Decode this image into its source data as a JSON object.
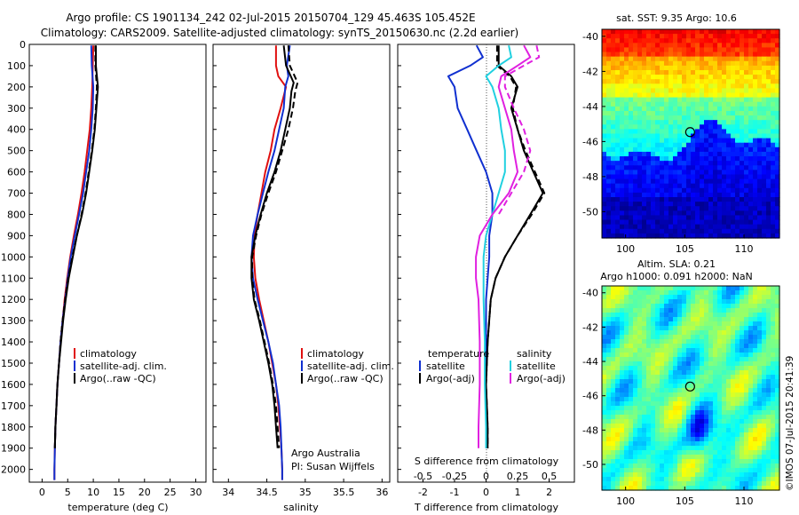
{
  "header": {
    "line1": "Argo profile: CS 1901134_242 02-Jul-2015 20150704_129 45.463S 105.452E",
    "line2": "Climatology: CARS2009. Satellite-adjusted climatology: synTS_20150630.nc (2.2d earlier)"
  },
  "colors": {
    "climatology": "#e01010",
    "satellite": "#1030d0",
    "argo": "#000000",
    "salinity_satellite": "#20d0e0",
    "salinity_argo": "#e020e0"
  },
  "chart_data": [
    {
      "type": "line",
      "panel": "temperature",
      "xlabel": "temperature (deg C)",
      "xticks": [
        "0",
        "5",
        "10",
        "15",
        "20",
        "25",
        "30"
      ],
      "xlim": [
        -2.5,
        32
      ],
      "yticks": [
        "0",
        "100",
        "200",
        "300",
        "400",
        "500",
        "600",
        "700",
        "800",
        "900",
        "1000",
        "1100",
        "1200",
        "1300",
        "1400",
        "1500",
        "1600",
        "1700",
        "1800",
        "1900",
        "2000"
      ],
      "ylim": [
        2060,
        0
      ],
      "legend": [
        "climatology",
        "satellite-adj. clim.",
        "Argo(..raw -QC)"
      ],
      "series": [
        {
          "name": "climatology",
          "color": "#e01010",
          "dash": false,
          "depth": [
            5,
            100,
            200,
            300,
            400,
            500,
            600,
            700,
            800,
            900,
            1000,
            1100,
            1200,
            1300,
            1400,
            1500,
            1600,
            1700,
            1800,
            1900,
            2000,
            2050
          ],
          "values": [
            10,
            9.9,
            9.8,
            9.6,
            9.3,
            8.8,
            8.3,
            7.7,
            7.0,
            6.2,
            5.5,
            4.9,
            4.4,
            4.0,
            3.6,
            3.3,
            3.0,
            2.8,
            2.6,
            2.5,
            2.4,
            2.4
          ]
        },
        {
          "name": "satellite-adj. clim.",
          "color": "#1030d0",
          "dash": false,
          "depth": [
            5,
            100,
            200,
            300,
            400,
            500,
            600,
            700,
            800,
            900,
            1000,
            1100,
            1200,
            1300,
            1400,
            1500,
            1600,
            1700,
            1800,
            1900,
            2000,
            2050
          ],
          "values": [
            9.6,
            9.7,
            10,
            9.9,
            9.6,
            9.2,
            8.6,
            8.0,
            7.2,
            6.4,
            5.6,
            5.0,
            4.5,
            4.0,
            3.6,
            3.3,
            3.0,
            2.8,
            2.6,
            2.5,
            2.4,
            2.4
          ]
        },
        {
          "name": "Argo(..raw -QC)",
          "color": "#000000",
          "dash": false,
          "depth": [
            5,
            100,
            200,
            300,
            400,
            500,
            600,
            700,
            800,
            900,
            1000,
            1100,
            1200,
            1300,
            1400,
            1500,
            1600,
            1700,
            1800,
            1900
          ],
          "values": [
            10.5,
            10.5,
            10.9,
            10.6,
            10.3,
            9.8,
            9.2,
            8.6,
            7.8,
            6.8,
            6.0,
            5.2,
            4.6,
            4.1,
            3.7,
            3.3,
            3.0,
            2.8,
            2.6,
            2.5
          ]
        },
        {
          "name": "Argo(-adj)",
          "color": "#000000",
          "dash": true,
          "depth": [
            5,
            100,
            200,
            300,
            400,
            500,
            600,
            700,
            800,
            900,
            1000,
            1100,
            1200,
            1300,
            1400,
            1500,
            1600,
            1700,
            1800,
            1900
          ],
          "values": [
            10.4,
            10.4,
            10.7,
            10.5,
            10.2,
            9.7,
            9.1,
            8.5,
            7.7,
            6.8,
            5.9,
            5.1,
            4.5,
            4.0,
            3.6,
            3.3,
            3.0,
            2.8,
            2.6,
            2.5
          ]
        }
      ]
    },
    {
      "type": "line",
      "panel": "salinity",
      "xlabel": "salinity",
      "xticks": [
        "34",
        "34.5",
        "35",
        "35.5",
        "36"
      ],
      "xlim": [
        33.8,
        36.1
      ],
      "ylim": [
        2060,
        0
      ],
      "legend": [
        "climatology",
        "satellite-adj. clim.",
        "Argo(..raw -QC)"
      ],
      "annotation": [
        "Argo Australia",
        "PI: Susan Wijffels"
      ],
      "series": [
        {
          "name": "climatology",
          "color": "#e01010",
          "dash": false,
          "depth": [
            5,
            100,
            150,
            200,
            300,
            400,
            500,
            600,
            700,
            800,
            900,
            1000,
            1100,
            1200,
            1300,
            1400,
            1500,
            1600,
            1700,
            1800,
            1900,
            2000,
            2050
          ],
          "values": [
            34.62,
            34.62,
            34.65,
            34.75,
            34.68,
            34.6,
            34.55,
            34.48,
            34.43,
            34.38,
            34.34,
            34.33,
            34.35,
            34.4,
            34.46,
            34.52,
            34.57,
            34.62,
            34.65,
            34.67,
            34.69,
            34.7,
            34.7
          ]
        },
        {
          "name": "satellite-adj. clim.",
          "color": "#1030d0",
          "dash": false,
          "depth": [
            5,
            100,
            150,
            200,
            300,
            400,
            500,
            600,
            700,
            800,
            900,
            1000,
            1100,
            1200,
            1300,
            1400,
            1500,
            1600,
            1700,
            1800,
            1900,
            2000,
            2050
          ],
          "values": [
            34.8,
            34.76,
            34.78,
            34.74,
            34.72,
            34.66,
            34.6,
            34.52,
            34.45,
            34.38,
            34.32,
            34.3,
            34.32,
            34.38,
            34.45,
            34.52,
            34.58,
            34.62,
            34.66,
            34.68,
            34.69,
            34.7,
            34.7
          ]
        },
        {
          "name": "Argo(..raw -QC)",
          "color": "#000000",
          "dash": false,
          "depth": [
            5,
            100,
            180,
            220,
            300,
            400,
            500,
            600,
            700,
            800,
            900,
            1000,
            1100,
            1200,
            1300,
            1400,
            1500,
            1600,
            1700,
            1800,
            1900
          ],
          "values": [
            34.72,
            34.75,
            34.85,
            34.82,
            34.8,
            34.74,
            34.68,
            34.6,
            34.5,
            34.42,
            34.35,
            34.3,
            34.3,
            34.33,
            34.4,
            34.46,
            34.52,
            34.57,
            34.6,
            34.62,
            34.64
          ]
        },
        {
          "name": "Argo(-adj)",
          "color": "#000000",
          "dash": true,
          "depth": [
            5,
            100,
            180,
            220,
            300,
            400,
            500,
            600,
            700,
            800,
            900,
            1000,
            1100,
            1200,
            1300,
            1400,
            1500,
            1600,
            1700,
            1800,
            1900
          ],
          "values": [
            34.78,
            34.8,
            34.9,
            34.87,
            34.84,
            34.78,
            34.7,
            34.62,
            34.52,
            34.43,
            34.36,
            34.31,
            34.31,
            34.34,
            34.41,
            34.47,
            34.53,
            34.58,
            34.62,
            34.64,
            34.66
          ]
        }
      ]
    },
    {
      "type": "line",
      "panel": "differences",
      "xlabel": "T difference from climatology",
      "xlabel2": "S difference from climatology",
      "xticks": [
        "-2",
        "-1",
        "0",
        "1",
        "2"
      ],
      "xticks2": [
        "-0.5",
        "-0.25",
        "0",
        "0.25",
        "0.5"
      ],
      "xlim": [
        -2.8,
        2.8
      ],
      "ylim": [
        2060,
        0
      ],
      "legend_groups": [
        {
          "title": "temperature",
          "items": [
            "satellite",
            "Argo(-adj)"
          ]
        },
        {
          "title": "salinity",
          "items": [
            "satellite",
            "Argo(-adj)"
          ]
        }
      ],
      "series": [
        {
          "name": "temperature satellite",
          "color": "#1030d0",
          "dash": false,
          "depth": [
            5,
            60,
            100,
            150,
            200,
            300,
            400,
            500,
            600,
            700,
            800,
            900,
            1000,
            1100,
            1200,
            1400,
            1600,
            1800,
            1900
          ],
          "values": [
            -0.3,
            -0.1,
            -0.5,
            -1.2,
            -1.0,
            -0.9,
            -0.6,
            -0.3,
            0.0,
            0.2,
            0.2,
            0.1,
            0.1,
            0.05,
            0.0,
            0.0,
            0.0,
            0.0,
            0.0
          ]
        },
        {
          "name": "temperature Argo(-adj)",
          "color": "#000000",
          "dash": false,
          "depth": [
            5,
            100,
            150,
            200,
            300,
            400,
            500,
            600,
            700,
            800,
            900,
            1000,
            1100,
            1200,
            1400,
            1600,
            1800,
            1900
          ],
          "values": [
            0.4,
            0.4,
            0.8,
            1.0,
            0.8,
            1.0,
            1.2,
            1.5,
            1.8,
            1.4,
            1.0,
            0.6,
            0.3,
            0.15,
            0.05,
            0.0,
            0.05,
            0.05
          ]
        },
        {
          "name": "temperature Argo(-adj) dashed",
          "color": "#000000",
          "dash": true,
          "depth": [
            5,
            100,
            150,
            200,
            300,
            400,
            500,
            600,
            700,
            800,
            900,
            1000,
            1100,
            1200,
            1400,
            1600,
            1800,
            1900
          ],
          "values": [
            0.35,
            0.35,
            0.75,
            0.95,
            0.85,
            1.0,
            1.25,
            1.55,
            1.85,
            1.45,
            1.0,
            0.6,
            0.3,
            0.15,
            0.05,
            0.0,
            0.05,
            0.05
          ]
        },
        {
          "name": "salinity satellite",
          "color": "#20d0e0",
          "dash": false,
          "depth": [
            5,
            60,
            100,
            150,
            200,
            300,
            400,
            500,
            600,
            700,
            800,
            900,
            1000,
            1100,
            1200,
            1400,
            1600,
            1800,
            1900
          ],
          "values": [
            0.18,
            0.2,
            0.1,
            0.0,
            0.05,
            0.1,
            0.12,
            0.15,
            0.15,
            0.1,
            0.05,
            0.0,
            -0.02,
            -0.02,
            -0.02,
            -0.01,
            -0.01,
            0.0,
            0.0
          ]
        },
        {
          "name": "salinity Argo(-adj)",
          "color": "#e020e0",
          "dash": false,
          "depth": [
            5,
            60,
            100,
            150,
            200,
            300,
            400,
            500,
            600,
            700,
            800,
            900,
            1000,
            1100,
            1200,
            1400,
            1600,
            1800,
            1900
          ],
          "values": [
            0.3,
            0.35,
            0.25,
            0.12,
            0.1,
            0.15,
            0.2,
            0.22,
            0.25,
            0.18,
            0.05,
            -0.05,
            -0.08,
            -0.08,
            -0.06,
            -0.05,
            -0.05,
            -0.06,
            -0.06
          ]
        },
        {
          "name": "salinity Argo(-adj) dashed",
          "color": "#e020e0",
          "dash": true,
          "depth": [
            5,
            60,
            100,
            150,
            200,
            300,
            400,
            500,
            600,
            700,
            800
          ],
          "values": [
            0.4,
            0.42,
            0.3,
            0.15,
            0.15,
            0.22,
            0.3,
            0.35,
            0.3,
            0.2,
            0.1
          ]
        }
      ]
    },
    {
      "type": "heatmap",
      "panel": "sst_map",
      "title": "sat. SST: 9.35  Argo: 10.6",
      "xticks": [
        "100",
        "105",
        "110"
      ],
      "yticks": [
        "-40",
        "-42",
        "-44",
        "-46",
        "-48",
        "-50"
      ],
      "xlim": [
        98,
        113
      ],
      "ylim": [
        -51.5,
        -39.6
      ],
      "marker": {
        "lon": 105.452,
        "lat": -45.463
      }
    },
    {
      "type": "heatmap",
      "panel": "sla_map",
      "title_line1": "Altim. SLA: 0.21",
      "title_line2": "Argo h1000: 0.091  h2000: NaN",
      "xticks": [
        "100",
        "105",
        "110"
      ],
      "yticks": [
        "-40",
        "-42",
        "-44",
        "-46",
        "-48",
        "-50"
      ],
      "xlim": [
        98,
        113
      ],
      "ylim": [
        -51.5,
        -39.6
      ],
      "marker": {
        "lon": 105.452,
        "lat": -45.463
      }
    }
  ],
  "footer": {
    "stamp": "©IMOS 07-Jul-2015 20:41:39"
  }
}
